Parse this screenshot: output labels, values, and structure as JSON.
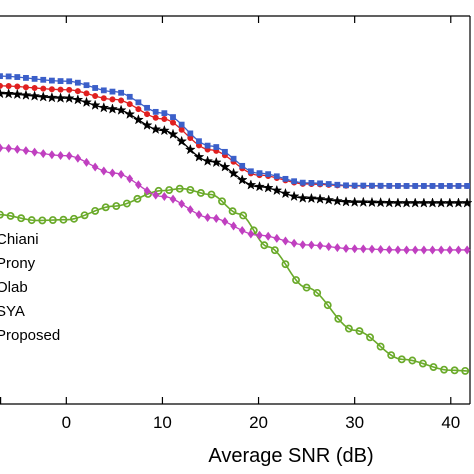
{
  "chart_data": {
    "type": "line",
    "xlabel": "Average SNR (dB)",
    "ylabel": "",
    "title": "",
    "xlim": [
      -6.9,
      42
    ],
    "ylim": [
      0,
      1
    ],
    "grid": false,
    "legend_placement": "left",
    "x_ticks": [
      {
        "value": 0,
        "label": "0"
      },
      {
        "value": 10,
        "label": "10"
      },
      {
        "value": 20,
        "label": "20"
      },
      {
        "value": 30,
        "label": "30"
      },
      {
        "value": 40,
        "label": "40"
      }
    ],
    "series": [
      {
        "name": "Chiani",
        "color": "#3b5fc9",
        "marker": "square",
        "points": [
          [
            -7,
            0.845
          ],
          [
            0,
            0.832
          ],
          [
            5,
            0.805
          ],
          [
            10,
            0.75
          ],
          [
            15,
            0.665
          ],
          [
            20,
            0.595
          ],
          [
            25,
            0.57
          ],
          [
            30,
            0.563
          ],
          [
            35,
            0.562
          ],
          [
            42,
            0.562
          ]
        ]
      },
      {
        "name": "Prony",
        "color": "#e02020",
        "marker": "circle",
        "points": [
          [
            -7,
            0.82
          ],
          [
            0,
            0.81
          ],
          [
            5,
            0.785
          ],
          [
            10,
            0.735
          ],
          [
            15,
            0.655
          ],
          [
            20,
            0.59
          ],
          [
            25,
            0.567
          ],
          [
            30,
            0.562
          ],
          [
            35,
            0.562
          ],
          [
            42,
            0.562
          ]
        ]
      },
      {
        "name": "Olab",
        "color": "#000000",
        "marker": "star",
        "points": [
          [
            -7,
            0.8
          ],
          [
            0,
            0.788
          ],
          [
            5,
            0.76
          ],
          [
            10,
            0.705
          ],
          [
            15,
            0.625
          ],
          [
            20,
            0.56
          ],
          [
            25,
            0.53
          ],
          [
            30,
            0.52
          ],
          [
            35,
            0.518
          ],
          [
            42,
            0.518
          ]
        ]
      },
      {
        "name": "SYA",
        "color": "#c040c0",
        "marker": "diamond",
        "points": [
          [
            -7,
            0.66
          ],
          [
            0,
            0.64
          ],
          [
            5,
            0.595
          ],
          [
            10,
            0.535
          ],
          [
            15,
            0.48
          ],
          [
            20,
            0.435
          ],
          [
            25,
            0.41
          ],
          [
            30,
            0.4
          ],
          [
            35,
            0.397
          ],
          [
            42,
            0.397
          ]
        ]
      },
      {
        "name": "Proposed",
        "color": "#6aaa2a",
        "marker": "circle-open",
        "points": [
          [
            -7,
            0.488
          ],
          [
            -3,
            0.473
          ],
          [
            0,
            0.475
          ],
          [
            5,
            0.51
          ],
          [
            10,
            0.55
          ],
          [
            12,
            0.555
          ],
          [
            15,
            0.54
          ],
          [
            18,
            0.49
          ],
          [
            21,
            0.405
          ],
          [
            25,
            0.3
          ],
          [
            30,
            0.19
          ],
          [
            35,
            0.115
          ],
          [
            40,
            0.087
          ],
          [
            42,
            0.085
          ]
        ]
      }
    ]
  }
}
